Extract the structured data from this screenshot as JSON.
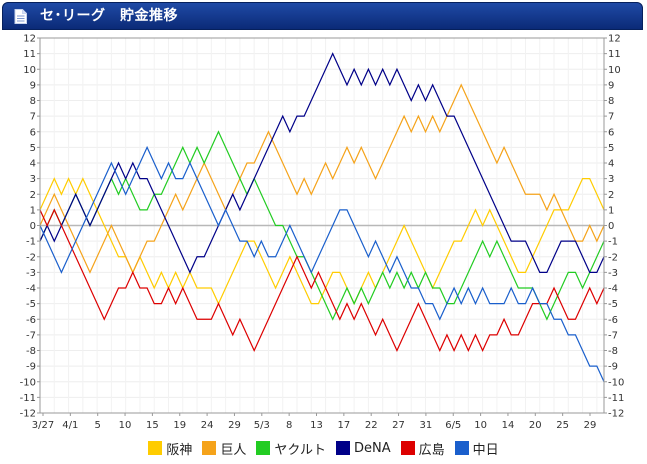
{
  "header": {
    "title": "セ･リーグ　貯金推移"
  },
  "chart_data": {
    "type": "line",
    "title": "セ･リーグ　貯金推移",
    "ylim": [
      -12,
      12
    ],
    "ytick_labels": [
      "12",
      "11",
      "10",
      "9",
      "8",
      "7",
      "6",
      "5",
      "4",
      "3",
      "2",
      "1",
      "0",
      "-1",
      "-2",
      "-3",
      "-4",
      "-5",
      "-6",
      "-7",
      "-8",
      "-9",
      "-10",
      "-11",
      "-12"
    ],
    "xtick_labels": [
      "3/27",
      "4/1",
      "5",
      "10",
      "15",
      "19",
      "24",
      "29",
      "5/3",
      "8",
      "13",
      "17",
      "22",
      "27",
      "31",
      "6/5",
      "10",
      "14",
      "20",
      "25",
      "29"
    ],
    "x_count": 80,
    "series": [
      {
        "name": "阪神",
        "color": "#ffcc00",
        "values": [
          1,
          2,
          3,
          2,
          3,
          2,
          3,
          2,
          1,
          0,
          -1,
          -2,
          -2,
          -3,
          -2,
          -3,
          -4,
          -3,
          -4,
          -3,
          -4,
          -3,
          -4,
          -4,
          -4,
          -5,
          -4,
          -3,
          -2,
          -1,
          -1,
          -2,
          -3,
          -4,
          -3,
          -2,
          -3,
          -4,
          -5,
          -5,
          -4,
          -3,
          -3,
          -4,
          -5,
          -4,
          -3,
          -4,
          -3,
          -2,
          -1,
          0,
          -1,
          -2,
          -3,
          -4,
          -3,
          -2,
          -1,
          -1,
          0,
          1,
          0,
          1,
          0,
          -1,
          -2,
          -3,
          -3,
          -2,
          -1,
          0,
          1,
          1,
          1,
          2,
          3,
          3,
          2,
          1
        ]
      },
      {
        "name": "巨人",
        "color": "#f5a31a",
        "values": [
          0,
          1,
          2,
          1,
          0,
          -1,
          -2,
          -3,
          -2,
          -1,
          0,
          -1,
          -2,
          -3,
          -2,
          -1,
          -1,
          0,
          1,
          2,
          1,
          2,
          3,
          4,
          3,
          2,
          1,
          2,
          3,
          4,
          4,
          5,
          6,
          5,
          4,
          3,
          2,
          3,
          2,
          3,
          4,
          3,
          4,
          5,
          4,
          5,
          4,
          3,
          4,
          5,
          6,
          7,
          6,
          7,
          6,
          7,
          6,
          7,
          8,
          9,
          8,
          7,
          6,
          5,
          4,
          5,
          4,
          3,
          2,
          2,
          2,
          1,
          2,
          1,
          0,
          -1,
          -1,
          0,
          -1,
          0
        ]
      },
      {
        "name": "ヤクルト",
        "color": "#22cc22",
        "values": [
          -1,
          0,
          1,
          0,
          1,
          2,
          1,
          0,
          1,
          2,
          3,
          2,
          3,
          2,
          1,
          1,
          2,
          2,
          3,
          4,
          5,
          4,
          5,
          4,
          5,
          6,
          5,
          4,
          3,
          2,
          3,
          2,
          1,
          0,
          0,
          -1,
          -2,
          -2,
          -3,
          -4,
          -5,
          -6,
          -5,
          -4,
          -5,
          -4,
          -5,
          -4,
          -3,
          -4,
          -3,
          -4,
          -3,
          -4,
          -3,
          -4,
          -4,
          -5,
          -5,
          -4,
          -3,
          -2,
          -1,
          -2,
          -1,
          -2,
          -3,
          -4,
          -4,
          -4,
          -5,
          -6,
          -5,
          -4,
          -3,
          -3,
          -4,
          -3,
          -2,
          -1
        ]
      },
      {
        "name": "DeNA",
        "color": "#000088",
        "values": [
          -1,
          0,
          -1,
          0,
          1,
          2,
          1,
          0,
          1,
          2,
          3,
          4,
          3,
          4,
          3,
          3,
          2,
          1,
          0,
          -1,
          -2,
          -3,
          -2,
          -2,
          -1,
          0,
          1,
          2,
          1,
          2,
          3,
          4,
          5,
          6,
          7,
          6,
          7,
          7,
          8,
          9,
          10,
          11,
          10,
          9,
          10,
          9,
          10,
          9,
          10,
          9,
          10,
          9,
          8,
          9,
          8,
          9,
          8,
          7,
          7,
          6,
          5,
          4,
          3,
          2,
          1,
          0,
          -1,
          -1,
          -1,
          -2,
          -3,
          -3,
          -2,
          -1,
          -1,
          -1,
          -2,
          -3,
          -3,
          -2
        ]
      },
      {
        "name": "広島",
        "color": "#dd0000",
        "values": [
          1,
          0,
          1,
          0,
          -1,
          -2,
          -3,
          -4,
          -5,
          -6,
          -5,
          -4,
          -4,
          -3,
          -4,
          -4,
          -5,
          -5,
          -4,
          -5,
          -4,
          -5,
          -6,
          -6,
          -6,
          -5,
          -6,
          -7,
          -6,
          -7,
          -8,
          -7,
          -6,
          -5,
          -4,
          -3,
          -2,
          -3,
          -4,
          -3,
          -4,
          -5,
          -6,
          -5,
          -6,
          -5,
          -6,
          -7,
          -6,
          -7,
          -8,
          -7,
          -6,
          -5,
          -6,
          -7,
          -8,
          -7,
          -8,
          -7,
          -8,
          -7,
          -8,
          -7,
          -7,
          -6,
          -7,
          -7,
          -6,
          -5,
          -5,
          -5,
          -4,
          -5,
          -6,
          -6,
          -5,
          -4,
          -5,
          -4
        ]
      },
      {
        "name": "中日",
        "color": "#1a5fcc",
        "values": [
          0,
          -1,
          -2,
          -3,
          -2,
          -1,
          0,
          1,
          2,
          3,
          4,
          3,
          2,
          3,
          4,
          5,
          4,
          3,
          4,
          3,
          3,
          4,
          3,
          2,
          1,
          0,
          1,
          0,
          -1,
          -1,
          -2,
          -1,
          -2,
          -2,
          -1,
          0,
          -1,
          -2,
          -3,
          -2,
          -1,
          0,
          1,
          1,
          0,
          -1,
          -2,
          -1,
          -2,
          -3,
          -2,
          -3,
          -4,
          -4,
          -5,
          -5,
          -6,
          -5,
          -4,
          -5,
          -4,
          -5,
          -4,
          -5,
          -5,
          -5,
          -4,
          -5,
          -5,
          -4,
          -5,
          -5,
          -6,
          -6,
          -7,
          -7,
          -8,
          -9,
          -9,
          -10
        ]
      }
    ]
  }
}
